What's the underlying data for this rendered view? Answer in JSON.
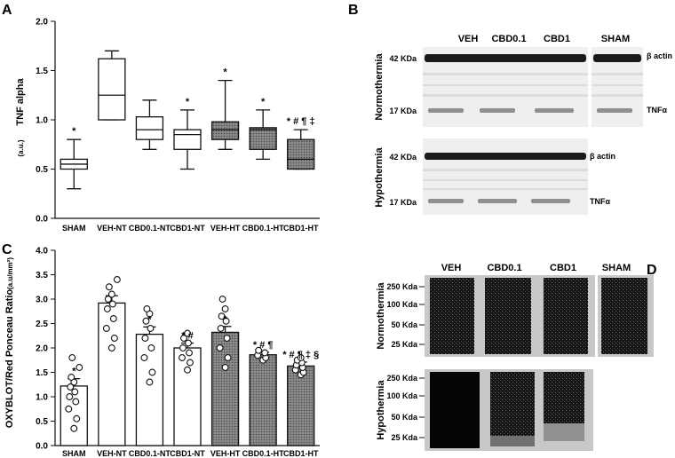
{
  "panels": {
    "A": "A",
    "B": "B",
    "C": "C",
    "D": "D"
  },
  "chart_data": [
    {
      "panel": "A",
      "type": "boxplot",
      "ylabel": "TNF alpha",
      "yunit": "(a.u.)",
      "ylim": [
        0,
        2.0
      ],
      "yticks": [
        "0.0",
        "0.5",
        "1.0",
        "1.5",
        "2.0"
      ],
      "categories": [
        "SHAM",
        "VEH-NT",
        "CBD0.1-NT",
        "CBD1-NT",
        "VEH-HT",
        "CBD0.1-HT",
        "CBD1-HT"
      ],
      "boxes": [
        {
          "min": 0.3,
          "q1": 0.5,
          "median": 0.55,
          "q3": 0.6,
          "max": 0.8,
          "style": "white"
        },
        {
          "min": 1.0,
          "q1": 1.0,
          "median": 1.25,
          "q3": 1.62,
          "max": 1.7,
          "style": "white"
        },
        {
          "min": 0.7,
          "q1": 0.8,
          "median": 0.9,
          "q3": 1.03,
          "max": 1.2,
          "style": "white"
        },
        {
          "min": 0.5,
          "q1": 0.7,
          "median": 0.85,
          "q3": 0.9,
          "max": 1.1,
          "style": "white"
        },
        {
          "min": 0.7,
          "q1": 0.8,
          "median": 0.9,
          "q3": 0.98,
          "max": 1.4,
          "style": "hatched"
        },
        {
          "min": 0.6,
          "q1": 0.7,
          "median": 0.9,
          "q3": 0.92,
          "max": 1.1,
          "style": "hatched"
        },
        {
          "min": 0.5,
          "q1": 0.5,
          "median": 0.6,
          "q3": 0.8,
          "max": 0.9,
          "style": "hatched"
        }
      ],
      "annotations": [
        "*",
        "",
        "",
        "*",
        "*",
        "*",
        "* # ¶ ‡"
      ]
    },
    {
      "panel": "C",
      "type": "bar",
      "ylabel": "OXYBLOT/Red Ponceau Ratio",
      "yunit": "(a.u/mm²)",
      "ylim": [
        0,
        4.0
      ],
      "yticks": [
        "0.0",
        "0.5",
        "1.0",
        "1.5",
        "2.0",
        "2.5",
        "3.0",
        "3.5",
        "4.0"
      ],
      "categories": [
        "SHAM",
        "VEH-NT",
        "CBD0.1-NT",
        "CBD1-NT",
        "VEH-HT",
        "CBD0.1-HT",
        "CBD1-HT"
      ],
      "values": [
        1.22,
        2.92,
        2.28,
        2.0,
        2.32,
        1.86,
        1.63
      ],
      "errors": [
        0.15,
        0.15,
        0.15,
        0.1,
        0.12,
        0.05,
        0.08
      ],
      "styles": [
        "white",
        "white",
        "white",
        "white",
        "hatched",
        "hatched",
        "hatched"
      ],
      "points": [
        [
          0.35,
          0.55,
          0.75,
          0.9,
          1.0,
          1.1,
          1.2,
          1.3,
          1.4,
          1.6,
          1.8
        ],
        [
          2.0,
          2.2,
          2.4,
          2.6,
          2.8,
          2.9,
          3.0,
          3.1,
          3.25,
          3.4
        ],
        [
          1.3,
          1.5,
          1.8,
          2.0,
          2.2,
          2.4,
          2.55,
          2.7,
          2.8
        ],
        [
          1.55,
          1.7,
          1.8,
          1.9,
          2.0,
          2.1,
          2.2,
          2.3
        ],
        [
          1.6,
          1.8,
          2.0,
          2.2,
          2.4,
          2.55,
          2.65,
          2.8,
          3.0
        ],
        [
          1.75,
          1.8,
          1.85,
          1.9,
          1.95
        ],
        [
          1.45,
          1.5,
          1.55,
          1.6,
          1.65,
          1.7,
          1.75,
          1.8
        ]
      ],
      "annotations": [
        "*",
        "",
        "*",
        "* #",
        "*",
        "* # ¶",
        "* # ¶ ‡ §"
      ]
    }
  ],
  "blot_B": {
    "lanes": [
      "VEH",
      "CBD0.1",
      "CBD1",
      "SHAM"
    ],
    "rows": [
      {
        "label": "Normothermia",
        "markers": [
          "42 KDa",
          "17 KDa"
        ],
        "bands": [
          "β actin",
          "TNFα"
        ]
      },
      {
        "label": "Hypothermia",
        "markers": [
          "42 KDa",
          "17 KDa"
        ],
        "bands": [
          "β actin",
          "TNFα"
        ]
      }
    ]
  },
  "blot_D": {
    "lanes": [
      "VEH",
      "CBD0.1",
      "CBD1",
      "SHAM"
    ],
    "markers": [
      "250 Kda",
      "100 Kda",
      "50 Kda",
      "25 Kda"
    ],
    "rows": [
      {
        "label": "Normothermia"
      },
      {
        "label": "Hypothermia"
      }
    ]
  }
}
